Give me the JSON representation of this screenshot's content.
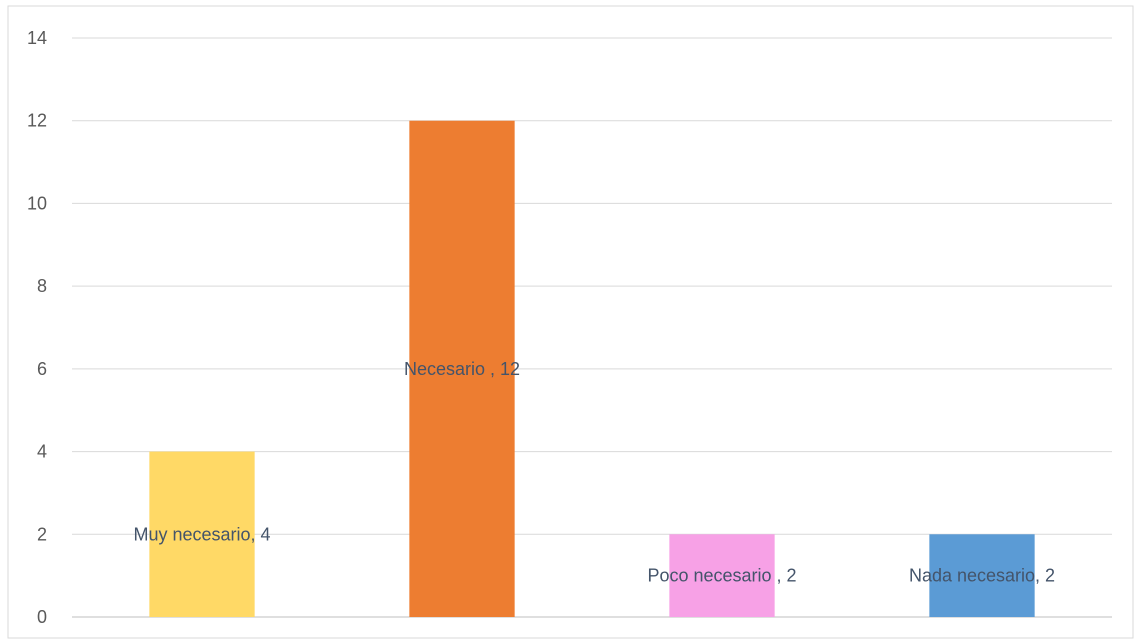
{
  "chart_data": {
    "type": "bar",
    "title": "",
    "categories": [
      "Muy necesario",
      "Necesario",
      "Poco necesario",
      "Nada necesario"
    ],
    "values": [
      4,
      12,
      2,
      2
    ],
    "data_labels": [
      "Muy necesario, 4",
      "Necesario , 12",
      "Poco necesario , 2",
      "Nada necesario, 2"
    ],
    "colors": [
      "#FFD966",
      "#ED7D31",
      "#F7A1E6",
      "#5B9BD5"
    ],
    "ylim": [
      0,
      14
    ],
    "yticks": [
      0,
      2,
      4,
      6,
      8,
      10,
      12,
      14
    ],
    "xlabel": "",
    "ylabel": "",
    "grid": true,
    "legend": "none"
  }
}
